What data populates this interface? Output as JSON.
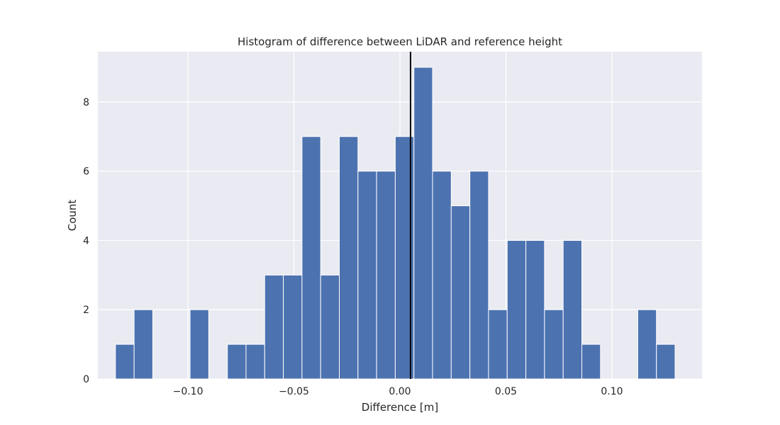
{
  "chart_data": {
    "type": "bar",
    "subtype": "histogram",
    "title": "Histogram of difference between LiDAR and reference height",
    "xlabel": "Difference [m]",
    "ylabel": "Count",
    "xlim": [
      -0.1425,
      0.1425
    ],
    "ylim": [
      0,
      9.45
    ],
    "grid": true,
    "x_ticks": [
      {
        "value": -0.1,
        "label": "−0.10"
      },
      {
        "value": -0.05,
        "label": "−0.05"
      },
      {
        "value": 0.0,
        "label": "0.00"
      },
      {
        "value": 0.05,
        "label": "0.05"
      },
      {
        "value": 0.1,
        "label": "0.10"
      }
    ],
    "y_ticks": [
      {
        "value": 0,
        "label": "0"
      },
      {
        "value": 2,
        "label": "2"
      },
      {
        "value": 4,
        "label": "4"
      },
      {
        "value": 6,
        "label": "6"
      },
      {
        "value": 8,
        "label": "8"
      }
    ],
    "bin_edges": [
      -0.1342,
      -0.1254,
      -0.1166,
      -0.1078,
      -0.099,
      -0.0902,
      -0.0814,
      -0.0726,
      -0.0638,
      -0.055,
      -0.0462,
      -0.0374,
      -0.0286,
      -0.0198,
      -0.011,
      -0.0022,
      0.0066,
      0.0154,
      0.0242,
      0.033,
      0.0418,
      0.0506,
      0.0594,
      0.0682,
      0.077,
      0.0858,
      0.0946,
      0.1034,
      0.1122,
      0.121,
      0.1298
    ],
    "counts": [
      1,
      2,
      0,
      0,
      2,
      0,
      1,
      1,
      3,
      3,
      7,
      3,
      7,
      6,
      6,
      7,
      9,
      6,
      5,
      6,
      2,
      4,
      4,
      2,
      4,
      1,
      0,
      0,
      2,
      1
    ],
    "vline_x": 0.005,
    "colors": {
      "bar": "#4c72b0",
      "plot_background": "#eaeaf2",
      "grid": "#ffffff",
      "vline": "#000000",
      "text": "#262626"
    }
  }
}
